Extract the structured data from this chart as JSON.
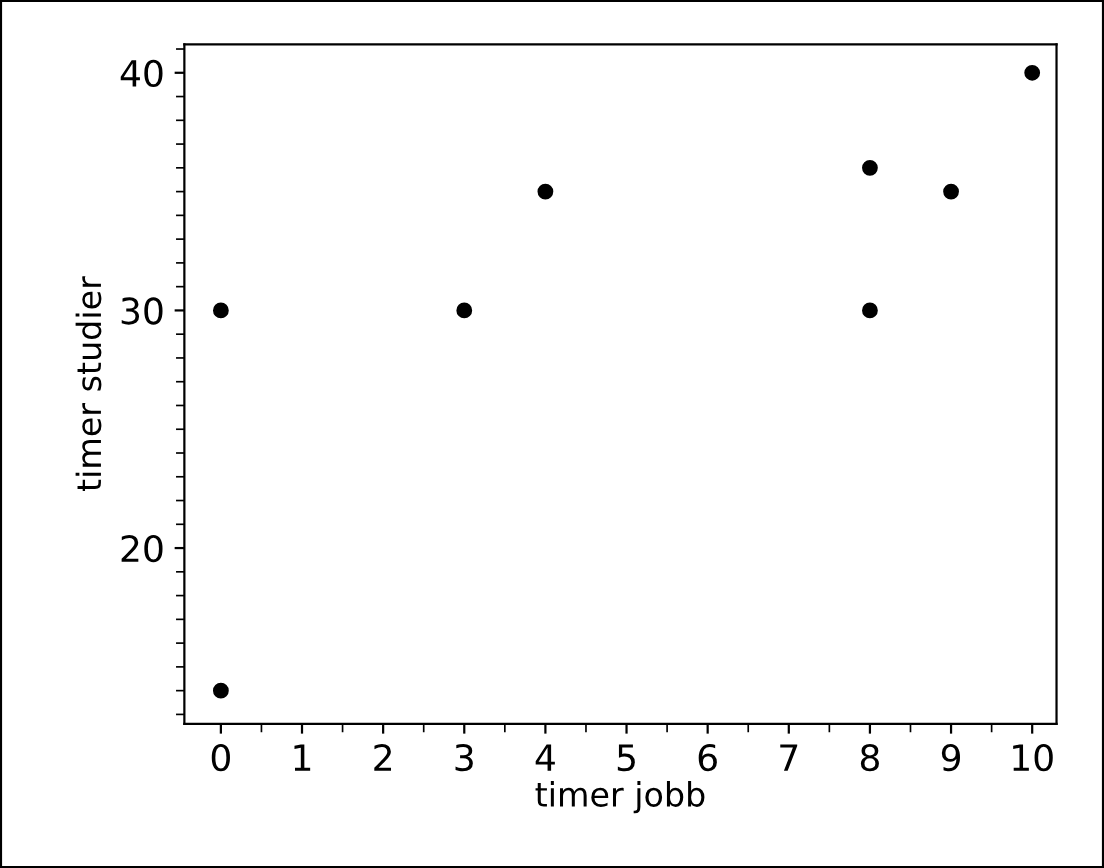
{
  "chart_data": {
    "type": "scatter",
    "xlabel": "timer jobb",
    "ylabel": "timer studier",
    "x": [
      0,
      0,
      3,
      4,
      8,
      8,
      9,
      10
    ],
    "values": [
      30,
      14,
      30,
      35,
      36,
      30,
      35,
      40
    ],
    "color": "#000000",
    "marker": "circle",
    "xlim": [
      -0.45,
      10.3
    ],
    "ylim": [
      12.6,
      41.2
    ],
    "xticks": [
      0,
      1,
      2,
      3,
      4,
      5,
      6,
      7,
      8,
      9,
      10
    ],
    "yticks": [
      20,
      30,
      40
    ],
    "grid": false,
    "legend": false
  }
}
